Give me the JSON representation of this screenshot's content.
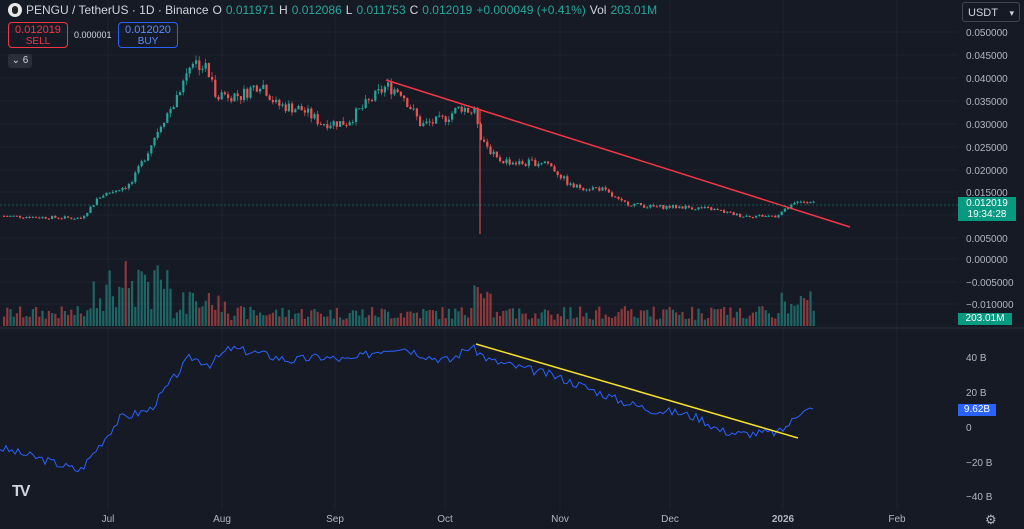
{
  "header": {
    "title": "PENGU / TetherUS · 1D · Binance",
    "open_label": "O",
    "open": "0.011971",
    "high_label": "H",
    "high": "0.012086",
    "low_label": "L",
    "low": "0.011753",
    "close_label": "C",
    "close": "0.012019",
    "change": "+0.000049 (+0.41%)",
    "vol_label": "Vol",
    "vol": "203.01M"
  },
  "trade": {
    "sell_price": "0.012019",
    "sell_label": "SELL",
    "spread": "0.000001",
    "buy_price": "0.012020",
    "buy_label": "BUY"
  },
  "indicators_toggle": "6",
  "currency": "USDT",
  "price_axis": [
    "0.050000",
    "0.045000",
    "0.040000",
    "0.035000",
    "0.030000",
    "0.025000",
    "0.020000",
    "0.015000",
    "0.010000",
    "0.005000",
    "0.000000",
    "−0.005000",
    "−0.010000"
  ],
  "indicator_axis": [
    "40 B",
    "20 B",
    "0",
    "−20 B",
    "−40 B"
  ],
  "time_axis": [
    "Jul",
    "Aug",
    "Sep",
    "Oct",
    "Nov",
    "Dec",
    "2026",
    "Feb"
  ],
  "last_price": "0.012019",
  "countdown": "19:34:28",
  "volume_tag": "203.01M",
  "indicator_tag": "9.62B",
  "logo": "TV",
  "colors": {
    "bg": "#161a25",
    "up": "#26a69a",
    "down": "#ef5350",
    "trend": "#f23645",
    "ind": "#2962ff",
    "ind_trend": "#f5e12a"
  },
  "chart_data": {
    "type": "candlestick",
    "price_range": [
      -0.01,
      0.05
    ],
    "indicator_range_B": [
      -40,
      40
    ],
    "price_series": [
      {
        "month": "Jun",
        "close": 0.0095
      },
      {
        "month": "Jul",
        "close": 0.016
      },
      {
        "month": "late-Jul",
        "close": 0.042
      },
      {
        "month": "Aug",
        "close": 0.033
      },
      {
        "month": "Sep",
        "close": 0.0315
      },
      {
        "month": "mid-Sep",
        "close": 0.0385
      },
      {
        "month": "Oct",
        "close": 0.033
      },
      {
        "month": "Oct-low",
        "close": 0.0055
      },
      {
        "month": "Nov",
        "close": 0.015
      },
      {
        "month": "Dec",
        "close": 0.01
      },
      {
        "month": "2026",
        "close": 0.012
      }
    ],
    "price_trendline": [
      {
        "date": "mid-Sep",
        "price": 0.0395
      },
      {
        "date": "mid-Jan",
        "price": 0.007
      }
    ],
    "indicator_series_B": [
      -12,
      -18,
      -25,
      5,
      38,
      35,
      45,
      40,
      38,
      42,
      46,
      40,
      30,
      20,
      10,
      0,
      -2,
      0,
      10,
      8
    ],
    "indicator_trendline_B": [
      {
        "date": "early-Oct",
        "value": 48
      },
      {
        "date": "early-Jan",
        "value": -3
      }
    ],
    "grid": true
  }
}
